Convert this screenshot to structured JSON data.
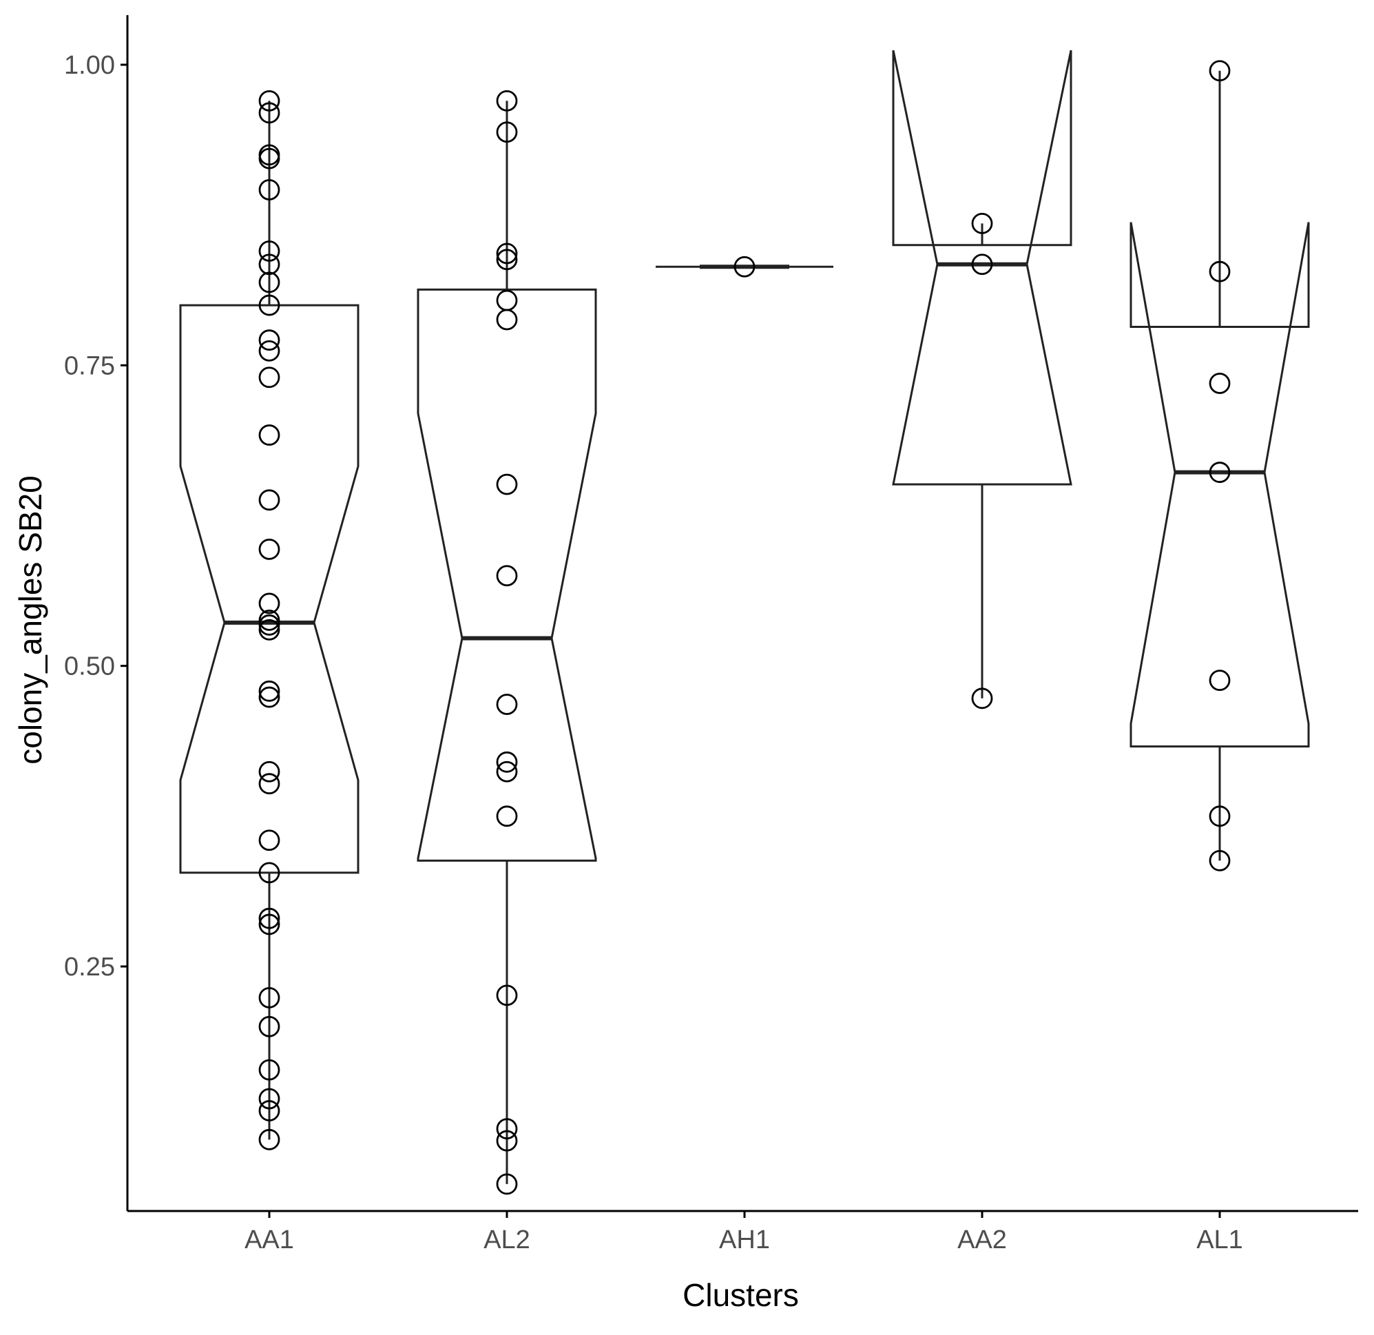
{
  "chart_data": {
    "type": "boxplot",
    "notched": true,
    "title": "",
    "xlabel": "Clusters",
    "ylabel": "colony_angles SB20",
    "ylim": [
      0.04,
      1.04
    ],
    "y_ticks": [
      0.25,
      0.5,
      0.75,
      1.0
    ],
    "y_tick_labels": [
      "0.25",
      "0.50",
      "0.75",
      "1.00"
    ],
    "grid": false,
    "legend": "none",
    "colors": {
      "line": "#222222",
      "axis": "#000000",
      "tick_text": "#4d4d4d",
      "background": "#ffffff"
    },
    "categories": [
      "AA1",
      "AL2",
      "AH1",
      "AA2",
      "AL1"
    ],
    "boxes": [
      {
        "category": "AA1",
        "min": 0.106,
        "q1": 0.328,
        "median": 0.536,
        "q3": 0.8,
        "max": 0.97,
        "notch_low": 0.405,
        "notch_high": 0.666,
        "points": [
          0.97,
          0.96,
          0.925,
          0.922,
          0.896,
          0.845,
          0.834,
          0.819,
          0.8,
          0.771,
          0.762,
          0.74,
          0.692,
          0.638,
          0.597,
          0.552,
          0.538,
          0.534,
          0.53,
          0.479,
          0.474,
          0.412,
          0.402,
          0.355,
          0.328,
          0.29,
          0.285,
          0.224,
          0.2,
          0.164,
          0.14,
          0.13,
          0.106
        ]
      },
      {
        "category": "AL2",
        "min": 0.069,
        "q1": 0.338,
        "median": 0.523,
        "q3": 0.813,
        "max": 0.97,
        "notch_low": 0.34,
        "notch_high": 0.71,
        "points": [
          0.97,
          0.944,
          0.843,
          0.838,
          0.804,
          0.788,
          0.651,
          0.575,
          0.468,
          0.42,
          0.412,
          0.375,
          0.226,
          0.115,
          0.105,
          0.069
        ]
      },
      {
        "category": "AH1",
        "min": 0.832,
        "q1": 0.832,
        "median": 0.832,
        "q3": 0.832,
        "max": 0.832,
        "notch_low": 0.832,
        "notch_high": 0.832,
        "points": [
          0.832
        ]
      },
      {
        "category": "AA2",
        "min": 0.473,
        "q1": 0.651,
        "median": 0.834,
        "q3": 0.85,
        "max": 0.868,
        "notch_low": 0.651,
        "notch_high": 1.012,
        "points": [
          0.868,
          0.834,
          0.473
        ]
      },
      {
        "category": "AL1",
        "min": 0.338,
        "q1": 0.433,
        "median": 0.661,
        "q3": 0.782,
        "max": 0.995,
        "notch_low": 0.452,
        "notch_high": 0.869,
        "points": [
          0.995,
          0.828,
          0.735,
          0.661,
          0.488,
          0.375,
          0.338
        ]
      }
    ]
  }
}
